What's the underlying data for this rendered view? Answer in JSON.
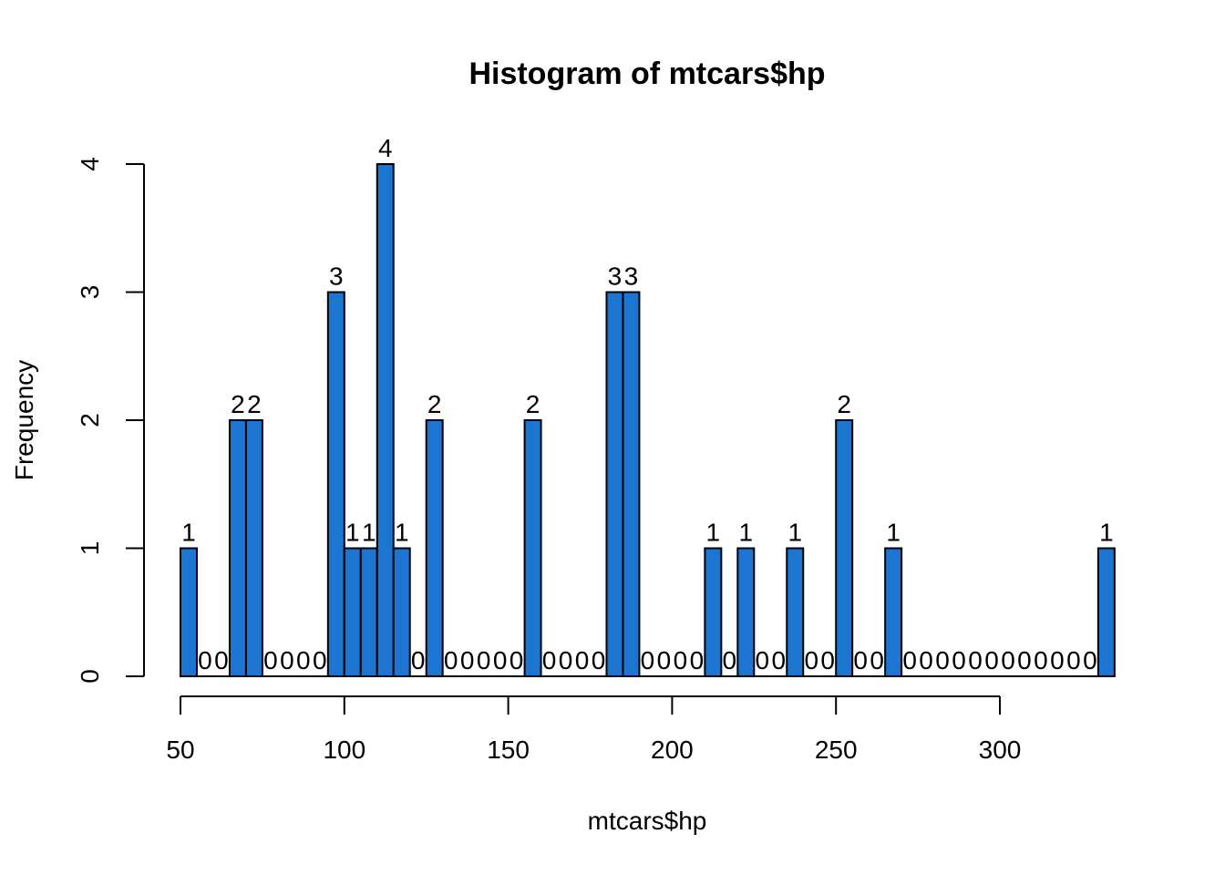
{
  "chart_data": {
    "type": "bar",
    "title": "Histogram of mtcars$hp",
    "xlabel": "mtcars$hp",
    "ylabel": "Frequency",
    "bin_width": 5,
    "bin_start": 50,
    "xlim": [
      50,
      335
    ],
    "ylim": [
      0,
      4
    ],
    "x_ticks": [
      50,
      100,
      150,
      200,
      250,
      300
    ],
    "y_ticks": [
      0,
      1,
      2,
      3,
      4
    ],
    "values": [
      1,
      0,
      0,
      2,
      2,
      0,
      0,
      0,
      0,
      3,
      1,
      1,
      4,
      1,
      0,
      2,
      0,
      0,
      0,
      0,
      0,
      2,
      0,
      0,
      0,
      0,
      3,
      3,
      0,
      0,
      0,
      0,
      1,
      0,
      1,
      0,
      0,
      1,
      0,
      0,
      2,
      0,
      0,
      1,
      0,
      0,
      0,
      0,
      0,
      0,
      0,
      0,
      0,
      0,
      0,
      0,
      1
    ],
    "bar_color": "#1C75D0",
    "grid": false
  }
}
